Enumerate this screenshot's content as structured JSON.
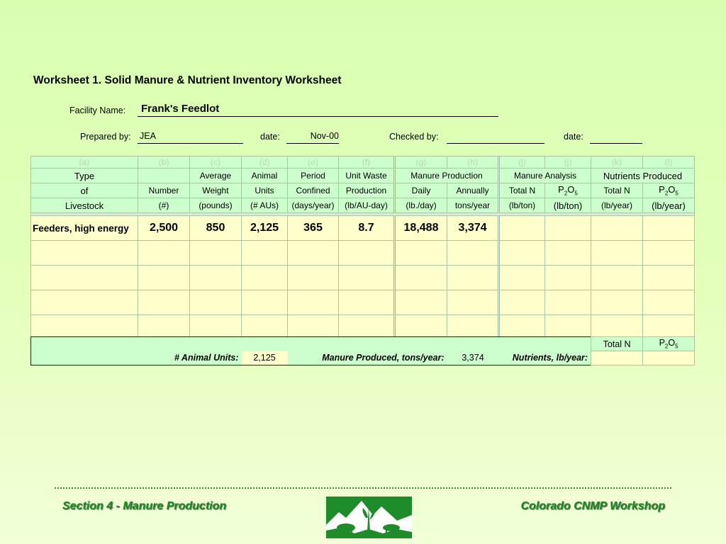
{
  "title": "Worksheet 1.  Solid Manure & Nutrient Inventory Worksheet",
  "facility": {
    "label": "Facility Name:",
    "value": "Frank's Feedlot"
  },
  "prepared": {
    "label": "Prepared by:",
    "value": "JEA",
    "date_label": "date:",
    "date_value": "Nov-00"
  },
  "checked": {
    "label": "Checked by:",
    "value": "",
    "date_label": "date:",
    "date_value": ""
  },
  "columns": {
    "letters": [
      "(a)",
      "(b)",
      "(c)",
      "(d)",
      "(e)",
      "(f)",
      "(g)",
      "(h)",
      "(j)",
      "(j)",
      "(k)",
      "(l)"
    ],
    "a": [
      "Type",
      "of",
      "Livestock"
    ],
    "b": [
      "",
      "Number",
      "(#)"
    ],
    "c": [
      "Average",
      "Weight",
      "(pounds)"
    ],
    "d": [
      "Animal",
      "Units",
      "(# AUs)"
    ],
    "e": [
      "Period",
      "Confined",
      "(days/year)"
    ],
    "f": [
      "Unit Waste",
      "Production",
      "(lb/AU-day)"
    ],
    "manure_production": "Manure Production",
    "g": [
      "Daily",
      "(lb./day)"
    ],
    "h": [
      "Annually",
      "tons/year"
    ],
    "manure_analysis": "Manure Analysis",
    "j1": [
      "Total N",
      "(lb/ton)"
    ],
    "j2": [
      "P",
      "2",
      "O",
      "5",
      "(lb/ton)"
    ],
    "nutrients_produced": "Nutrients  Produced",
    "k": [
      "Total N",
      "(lb/year)"
    ],
    "l": [
      "P",
      "2",
      "O",
      "5",
      "(lb/year)"
    ]
  },
  "rows": [
    {
      "type": "Feeders, high energy",
      "number": "2,500",
      "weight": "850",
      "aus": "2,125",
      "period": "365",
      "unit_waste": "8.7",
      "daily": "18,488",
      "annually": "3,374",
      "analysis_n": "",
      "analysis_p": "",
      "nutr_n": "",
      "nutr_p": ""
    }
  ],
  "summary": {
    "total_n_label": "Total N",
    "p2o5": [
      "P",
      "2",
      "O",
      "5"
    ],
    "animal_units_label": "# Animal Units:",
    "animal_units_value": "2,125",
    "manure_label": "Manure Produced, tons/year:",
    "manure_value": "3,374",
    "nutrients_label": "Nutrients, lb/year:"
  },
  "footer": {
    "left": "Section 4 - Manure Production",
    "right": "Colorado CNMP Workshop",
    "logo_icon": "mountains-livestock-logo-icon",
    "accent": "#1a8a1a"
  }
}
